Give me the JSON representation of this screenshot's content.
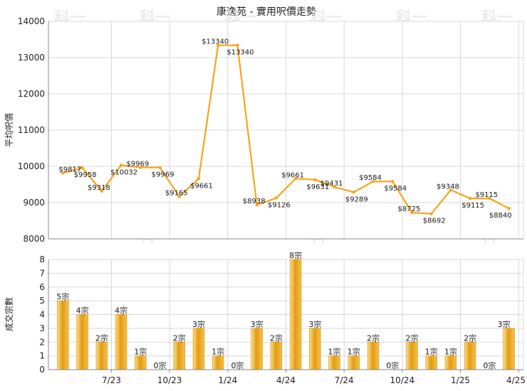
{
  "title": "康逸苑 - 實用呎價走勢",
  "colors": {
    "line": "#f7a51c",
    "bar_light": "#fbe08a",
    "bar_dark": "#e49b12",
    "grid": "#d8d8d8",
    "axis": "#888888",
    "watermark": "#e6e6e6"
  },
  "watermark_text": "科一",
  "chart_data": [
    {
      "type": "line",
      "ylabel": "平均呎價",
      "ylim": [
        8000,
        14000
      ],
      "yticks": [
        8000,
        9000,
        10000,
        11000,
        12000,
        13000,
        14000
      ],
      "grid": true,
      "points": [
        {
          "value": 9817,
          "label": "$9817"
        },
        {
          "value": 9958,
          "label": "$9958"
        },
        {
          "value": 9318,
          "label": "$9318"
        },
        {
          "value": 10032,
          "label": "$10032"
        },
        {
          "value": 9969,
          "label": "$9969"
        },
        {
          "value": 9969,
          "label": "$9969"
        },
        {
          "value": 9165,
          "label": "$9165"
        },
        {
          "value": 9661,
          "label": "$9661"
        },
        {
          "value": 13340,
          "label": "$13340"
        },
        {
          "value": 13340,
          "label": "$13340"
        },
        {
          "value": 8938,
          "label": "$8938"
        },
        {
          "value": 9126,
          "label": "$9126"
        },
        {
          "value": 9661,
          "label": "$9661"
        },
        {
          "value": 9631,
          "label": "$9631"
        },
        {
          "value": 9431,
          "label": "$9431"
        },
        {
          "value": 9289,
          "label": "$9289"
        },
        {
          "value": 9584,
          "label": "$9584"
        },
        {
          "value": 9584,
          "label": "$9584"
        },
        {
          "value": 8725,
          "label": "$8725"
        },
        {
          "value": 8692,
          "label": "$8692"
        },
        {
          "value": 9348,
          "label": "$9348"
        },
        {
          "value": 9115,
          "label": "$9115"
        },
        {
          "value": 9115,
          "label": "$9115"
        },
        {
          "value": 8840,
          "label": "$8840"
        }
      ]
    },
    {
      "type": "bar",
      "ylabel": "成交宗數",
      "ylim": [
        0,
        8
      ],
      "yticks": [
        0,
        1,
        2,
        3,
        4,
        5,
        6,
        7,
        8
      ],
      "grid": true,
      "values": [
        5,
        4,
        2,
        4,
        1,
        0,
        2,
        3,
        1,
        0,
        3,
        2,
        8,
        3,
        1,
        1,
        2,
        0,
        2,
        1,
        1,
        2,
        0,
        3
      ],
      "labels": [
        "5宗",
        "4宗",
        "2宗",
        "4宗",
        "1宗",
        "0宗",
        "2宗",
        "3宗",
        "1宗",
        "0宗",
        "3宗",
        "2宗",
        "8宗",
        "3宗",
        "1宗",
        "1宗",
        "2宗",
        "0宗",
        "2宗",
        "1宗",
        "1宗",
        "2宗",
        "0宗",
        "3宗"
      ],
      "xticks": [
        "7/23",
        "10/23",
        "1/24",
        "4/24",
        "7/24",
        "10/24",
        "1/25",
        "4/25"
      ]
    }
  ]
}
